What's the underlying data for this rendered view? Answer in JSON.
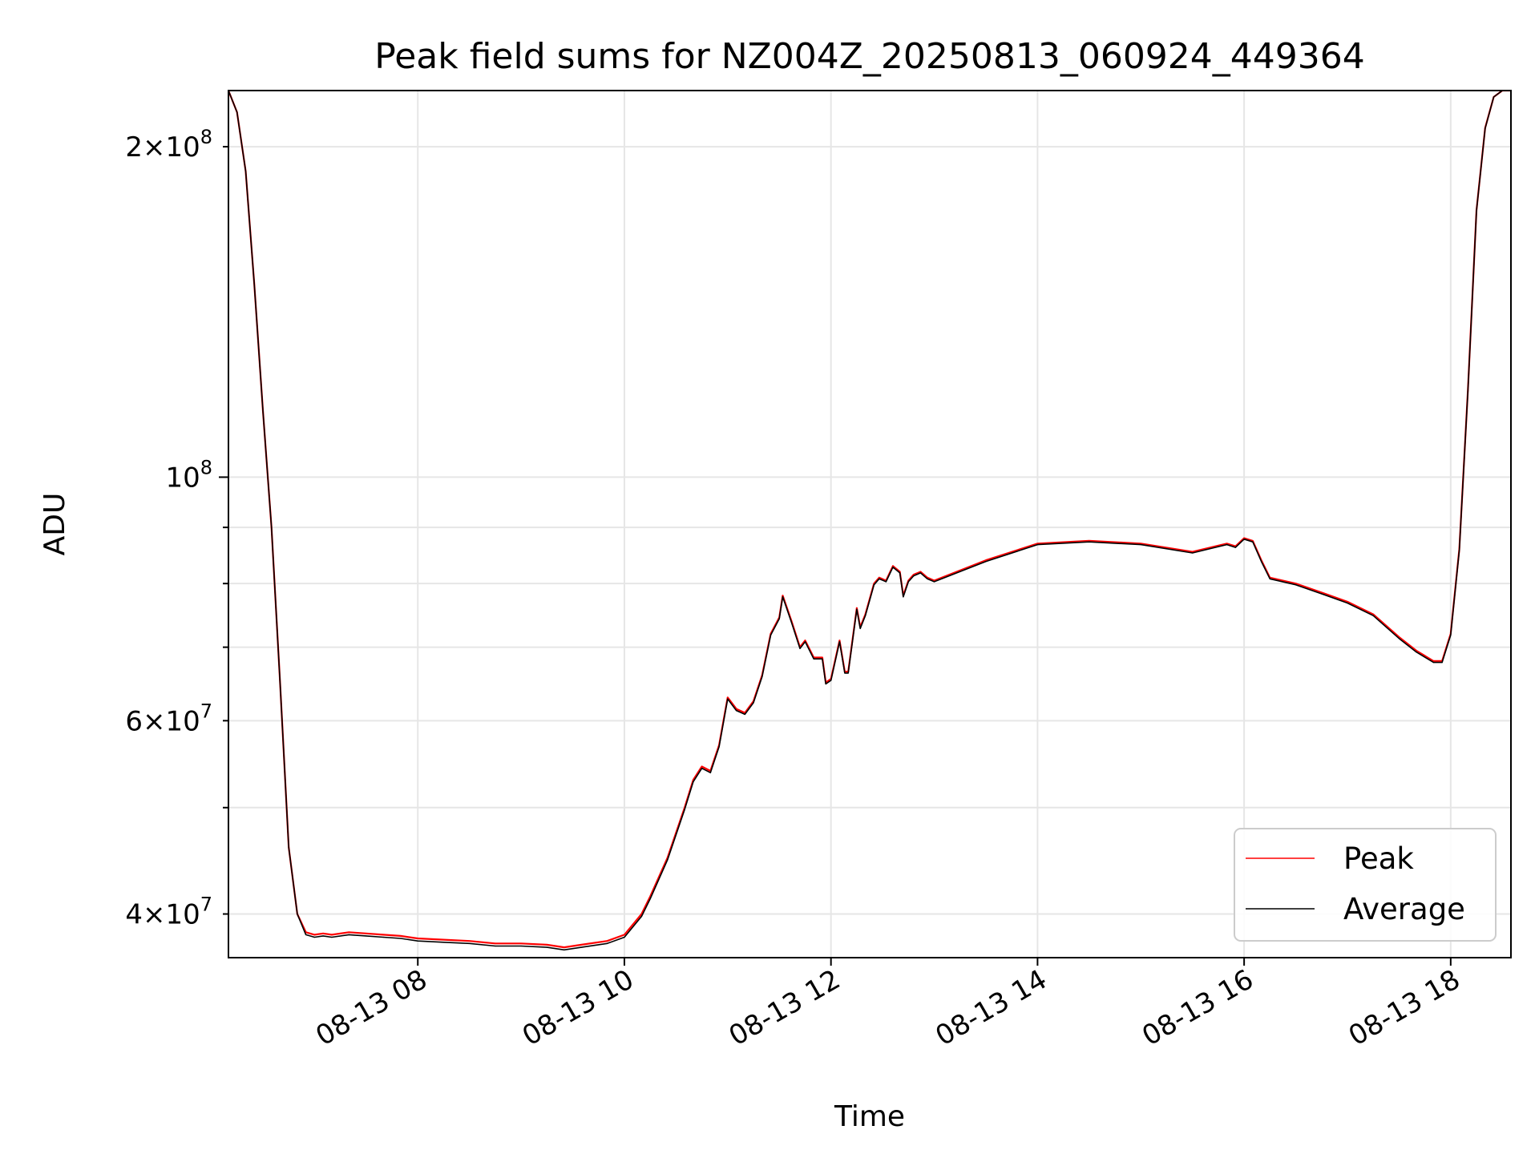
{
  "chart_data": {
    "type": "line",
    "title": "Peak field sums for NZ004Z_20250813_060924_449364",
    "xlabel": "Time",
    "ylabel": "ADU",
    "y_scale": "log",
    "ylim": [
      36500000,
      225000000
    ],
    "xlim": [
      "2025-08-13T06:10",
      "2025-08-13T18:35"
    ],
    "x_ticks": [
      {
        "x": "2025-08-13T08:00",
        "label": "08-13 08"
      },
      {
        "x": "2025-08-13T10:00",
        "label": "08-13 10"
      },
      {
        "x": "2025-08-13T12:00",
        "label": "08-13 12"
      },
      {
        "x": "2025-08-13T14:00",
        "label": "08-13 14"
      },
      {
        "x": "2025-08-13T16:00",
        "label": "08-13 16"
      },
      {
        "x": "2025-08-13T18:00",
        "label": "08-13 18"
      }
    ],
    "y_major_ticks": [
      {
        "y": 100000000,
        "base": "10",
        "exp": "8"
      }
    ],
    "y_minor_ticks": [
      {
        "y": 40000000,
        "mant": "4",
        "base": "10",
        "exp": "7"
      },
      {
        "y": 60000000,
        "mant": "6",
        "base": "10",
        "exp": "7"
      },
      {
        "y": 200000000,
        "mant": "2",
        "base": "10",
        "exp": "8"
      }
    ],
    "y_minor_unlabeled": [
      50000000,
      70000000,
      80000000,
      90000000
    ],
    "grid": true,
    "legend_position": "lower right",
    "series": [
      {
        "name": "Peak",
        "color": "#ff0000",
        "x": [
          "2025-08-13T06:10",
          "2025-08-13T06:15",
          "2025-08-13T06:20",
          "2025-08-13T06:25",
          "2025-08-13T06:30",
          "2025-08-13T06:35",
          "2025-08-13T06:40",
          "2025-08-13T06:45",
          "2025-08-13T06:50",
          "2025-08-13T06:55",
          "2025-08-13T07:00",
          "2025-08-13T07:05",
          "2025-08-13T07:10",
          "2025-08-13T07:20",
          "2025-08-13T07:30",
          "2025-08-13T07:40",
          "2025-08-13T07:50",
          "2025-08-13T08:00",
          "2025-08-13T08:15",
          "2025-08-13T08:30",
          "2025-08-13T08:45",
          "2025-08-13T09:00",
          "2025-08-13T09:15",
          "2025-08-13T09:25",
          "2025-08-13T09:35",
          "2025-08-13T09:50",
          "2025-08-13T10:00",
          "2025-08-13T10:10",
          "2025-08-13T10:15",
          "2025-08-13T10:25",
          "2025-08-13T10:35",
          "2025-08-13T10:40",
          "2025-08-13T10:45",
          "2025-08-13T10:50",
          "2025-08-13T10:55",
          "2025-08-13T11:00",
          "2025-08-13T11:05",
          "2025-08-13T11:10",
          "2025-08-13T11:15",
          "2025-08-13T11:20",
          "2025-08-13T11:25",
          "2025-08-13T11:30",
          "2025-08-13T11:32",
          "2025-08-13T11:37",
          "2025-08-13T11:42",
          "2025-08-13T11:45",
          "2025-08-13T11:50",
          "2025-08-13T11:55",
          "2025-08-13T11:57",
          "2025-08-13T12:00",
          "2025-08-13T12:05",
          "2025-08-13T12:08",
          "2025-08-13T12:10",
          "2025-08-13T12:15",
          "2025-08-13T12:17",
          "2025-08-13T12:20",
          "2025-08-13T12:25",
          "2025-08-13T12:28",
          "2025-08-13T12:32",
          "2025-08-13T12:36",
          "2025-08-13T12:40",
          "2025-08-13T12:42",
          "2025-08-13T12:45",
          "2025-08-13T12:48",
          "2025-08-13T12:52",
          "2025-08-13T12:56",
          "2025-08-13T13:00",
          "2025-08-13T13:30",
          "2025-08-13T14:00",
          "2025-08-13T14:30",
          "2025-08-13T15:00",
          "2025-08-13T15:30",
          "2025-08-13T15:50",
          "2025-08-13T15:55",
          "2025-08-13T16:00",
          "2025-08-13T16:05",
          "2025-08-13T16:10",
          "2025-08-13T16:15",
          "2025-08-13T16:30",
          "2025-08-13T16:45",
          "2025-08-13T17:00",
          "2025-08-13T17:15",
          "2025-08-13T17:30",
          "2025-08-13T17:40",
          "2025-08-13T17:50",
          "2025-08-13T17:55",
          "2025-08-13T18:00",
          "2025-08-13T18:05",
          "2025-08-13T18:10",
          "2025-08-13T18:15",
          "2025-08-13T18:20",
          "2025-08-13T18:25",
          "2025-08-13T18:30",
          "2025-08-13T18:35"
        ],
        "y": [
          225000000,
          215000000,
          190000000,
          150000000,
          115000000,
          90000000,
          65000000,
          46000000,
          40000000,
          38500000,
          38300000,
          38400000,
          38300000,
          38500000,
          38400000,
          38300000,
          38200000,
          38000000,
          37900000,
          37800000,
          37600000,
          37600000,
          37500000,
          37300000,
          37500000,
          37800000,
          38300000,
          40000000,
          41500000,
          45000000,
          50000000,
          53000000,
          54500000,
          54000000,
          57000000,
          63000000,
          61500000,
          61000000,
          62500000,
          66000000,
          72000000,
          74500000,
          78000000,
          74000000,
          70000000,
          71000000,
          68500000,
          68500000,
          65000000,
          65500000,
          71000000,
          66500000,
          66500000,
          76000000,
          73000000,
          75000000,
          80000000,
          81000000,
          80500000,
          83000000,
          82000000,
          78000000,
          80500000,
          81500000,
          82000000,
          81000000,
          80500000,
          84000000,
          87000000,
          87500000,
          87000000,
          85500000,
          87000000,
          86500000,
          88000000,
          87500000,
          84000000,
          81000000,
          80000000,
          78500000,
          77000000,
          75000000,
          71500000,
          69500000,
          68000000,
          68000000,
          72000000,
          86000000,
          120000000,
          175000000,
          208000000,
          222000000,
          225000000,
          225000000
        ]
      },
      {
        "name": "Average",
        "color": "#000000",
        "x": [
          "2025-08-13T06:10",
          "2025-08-13T06:15",
          "2025-08-13T06:20",
          "2025-08-13T06:25",
          "2025-08-13T06:30",
          "2025-08-13T06:35",
          "2025-08-13T06:40",
          "2025-08-13T06:45",
          "2025-08-13T06:50",
          "2025-08-13T06:55",
          "2025-08-13T07:00",
          "2025-08-13T07:05",
          "2025-08-13T07:10",
          "2025-08-13T07:20",
          "2025-08-13T07:30",
          "2025-08-13T07:40",
          "2025-08-13T07:50",
          "2025-08-13T08:00",
          "2025-08-13T08:15",
          "2025-08-13T08:30",
          "2025-08-13T08:45",
          "2025-08-13T09:00",
          "2025-08-13T09:15",
          "2025-08-13T09:25",
          "2025-08-13T09:35",
          "2025-08-13T09:50",
          "2025-08-13T10:00",
          "2025-08-13T10:10",
          "2025-08-13T10:15",
          "2025-08-13T10:25",
          "2025-08-13T10:35",
          "2025-08-13T10:40",
          "2025-08-13T10:45",
          "2025-08-13T10:50",
          "2025-08-13T10:55",
          "2025-08-13T11:00",
          "2025-08-13T11:05",
          "2025-08-13T11:10",
          "2025-08-13T11:15",
          "2025-08-13T11:20",
          "2025-08-13T11:25",
          "2025-08-13T11:30",
          "2025-08-13T11:32",
          "2025-08-13T11:37",
          "2025-08-13T11:42",
          "2025-08-13T11:45",
          "2025-08-13T11:50",
          "2025-08-13T11:55",
          "2025-08-13T11:57",
          "2025-08-13T12:00",
          "2025-08-13T12:05",
          "2025-08-13T12:08",
          "2025-08-13T12:10",
          "2025-08-13T12:15",
          "2025-08-13T12:17",
          "2025-08-13T12:20",
          "2025-08-13T12:25",
          "2025-08-13T12:28",
          "2025-08-13T12:32",
          "2025-08-13T12:36",
          "2025-08-13T12:40",
          "2025-08-13T12:42",
          "2025-08-13T12:45",
          "2025-08-13T12:48",
          "2025-08-13T12:52",
          "2025-08-13T12:56",
          "2025-08-13T13:00",
          "2025-08-13T13:30",
          "2025-08-13T14:00",
          "2025-08-13T14:30",
          "2025-08-13T15:00",
          "2025-08-13T15:30",
          "2025-08-13T15:50",
          "2025-08-13T15:55",
          "2025-08-13T16:00",
          "2025-08-13T16:05",
          "2025-08-13T16:10",
          "2025-08-13T16:15",
          "2025-08-13T16:30",
          "2025-08-13T16:45",
          "2025-08-13T17:00",
          "2025-08-13T17:15",
          "2025-08-13T17:30",
          "2025-08-13T17:40",
          "2025-08-13T17:50",
          "2025-08-13T17:55",
          "2025-08-13T18:00",
          "2025-08-13T18:05",
          "2025-08-13T18:10",
          "2025-08-13T18:15",
          "2025-08-13T18:20",
          "2025-08-13T18:25",
          "2025-08-13T18:30",
          "2025-08-13T18:35"
        ],
        "y": [
          225000000,
          215000000,
          190000000,
          150000000,
          115000000,
          90000000,
          65000000,
          46000000,
          40000000,
          38300000,
          38100000,
          38200000,
          38100000,
          38300000,
          38200000,
          38100000,
          38000000,
          37800000,
          37700000,
          37600000,
          37400000,
          37400000,
          37300000,
          37100000,
          37300000,
          37600000,
          38100000,
          39800000,
          41300000,
          44800000,
          49800000,
          52800000,
          54300000,
          53800000,
          56800000,
          62800000,
          61300000,
          60800000,
          62300000,
          65800000,
          71800000,
          74300000,
          77800000,
          73800000,
          69800000,
          70800000,
          68300000,
          68300000,
          64800000,
          65300000,
          70800000,
          66300000,
          66300000,
          75800000,
          72800000,
          74800000,
          79800000,
          80800000,
          80300000,
          82800000,
          81800000,
          77800000,
          80300000,
          81300000,
          81800000,
          80800000,
          80300000,
          83800000,
          86800000,
          87300000,
          86800000,
          85300000,
          86800000,
          86300000,
          87800000,
          87300000,
          83800000,
          80800000,
          79800000,
          78300000,
          76800000,
          74800000,
          71300000,
          69300000,
          67800000,
          67800000,
          71800000,
          85800000,
          119800000,
          174800000,
          207800000,
          222000000,
          225000000,
          225000000
        ]
      }
    ]
  }
}
